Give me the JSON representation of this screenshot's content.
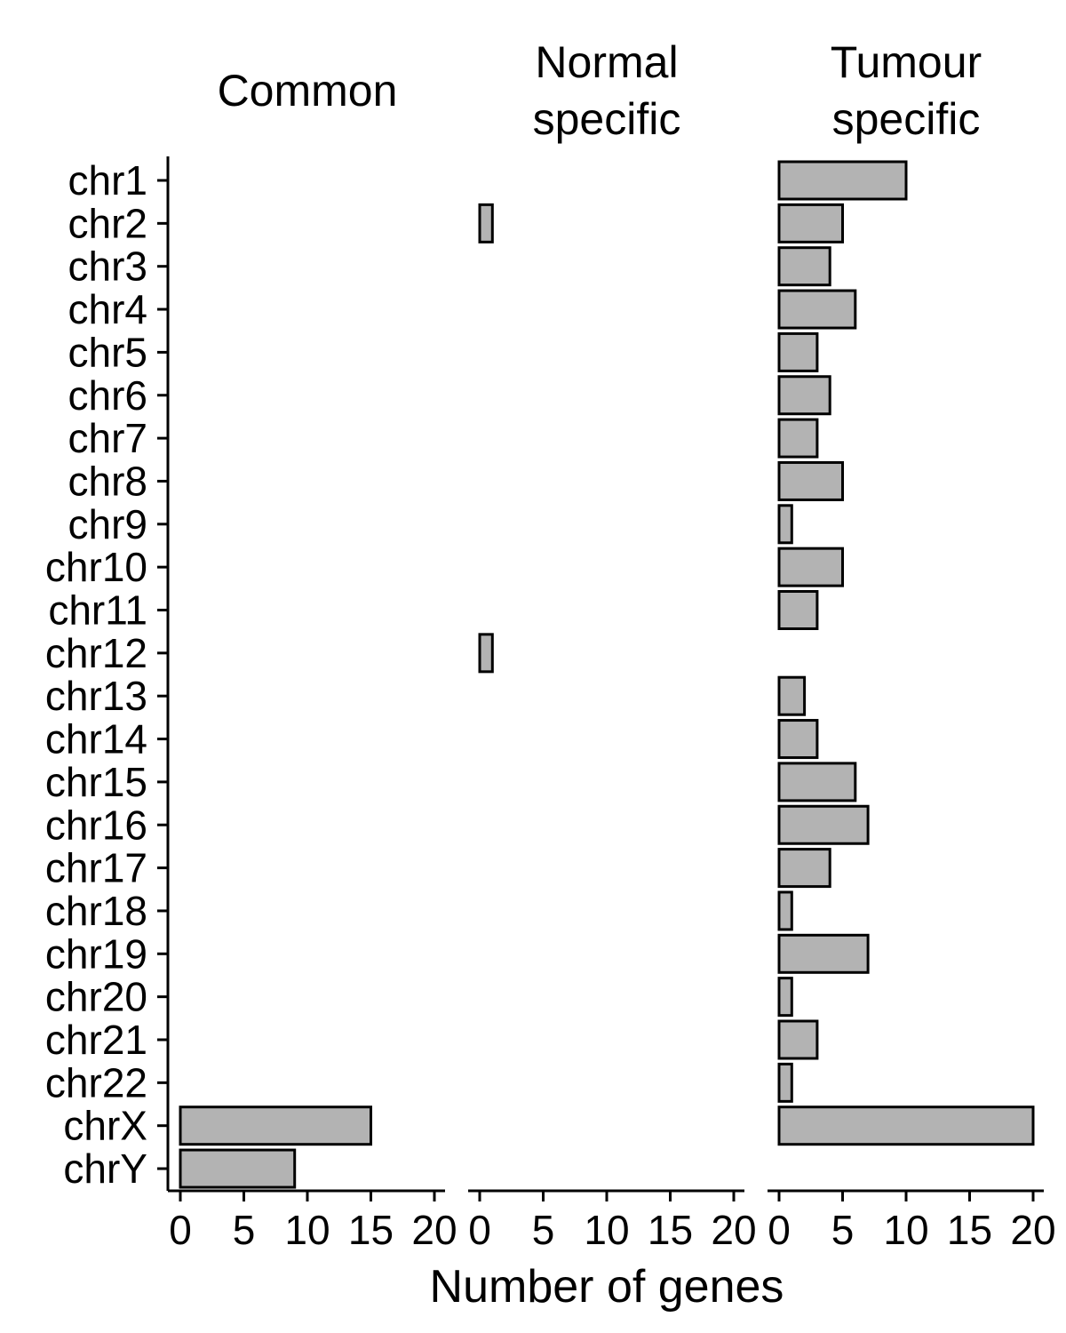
{
  "chart_data": {
    "type": "bar",
    "orientation": "horizontal",
    "xlabel": "Number of genes",
    "ylabel": "",
    "xlim": [
      0,
      20
    ],
    "x_ticks": [
      "0",
      "5",
      "10",
      "15",
      "20"
    ],
    "grid": false,
    "legend": "none",
    "colors": {
      "bar_fill": "#b3b3b3",
      "bar_stroke": "#000000",
      "axis": "#000000"
    },
    "categories": [
      "chr1",
      "chr2",
      "chr3",
      "chr4",
      "chr5",
      "chr6",
      "chr7",
      "chr8",
      "chr9",
      "chr10",
      "chr11",
      "chr12",
      "chr13",
      "chr14",
      "chr15",
      "chr16",
      "chr17",
      "chr18",
      "chr19",
      "chr20",
      "chr21",
      "chr22",
      "chrX",
      "chrY"
    ],
    "facets": [
      {
        "title": [
          "Common"
        ],
        "values": [
          0,
          0,
          0,
          0,
          0,
          0,
          0,
          0,
          0,
          0,
          0,
          0,
          0,
          0,
          0,
          0,
          0,
          0,
          0,
          0,
          0,
          0,
          15,
          9
        ]
      },
      {
        "title": [
          "Normal",
          "specific"
        ],
        "values": [
          0,
          1,
          0,
          0,
          0,
          0,
          0,
          0,
          0,
          0,
          0,
          1,
          0,
          0,
          0,
          0,
          0,
          0,
          0,
          0,
          0,
          0,
          0,
          0
        ]
      },
      {
        "title": [
          "Tumour",
          "specific"
        ],
        "values": [
          10,
          5,
          4,
          6,
          3,
          4,
          3,
          5,
          1,
          5,
          3,
          0,
          2,
          3,
          6,
          7,
          4,
          1,
          7,
          1,
          3,
          1,
          20,
          0
        ]
      }
    ]
  }
}
